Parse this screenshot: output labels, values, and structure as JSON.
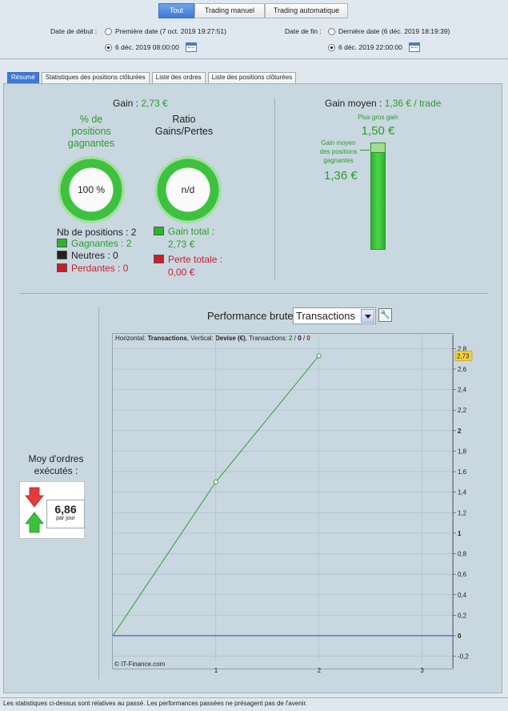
{
  "mode_tabs": [
    "Tout",
    "Trading manuel",
    "Trading automatique"
  ],
  "dates": {
    "start_label": "Date de début :",
    "start_option1": "Première date (7 oct. 2019 19:27:51)",
    "start_option2": "6 déc. 2019 08:00:00",
    "end_label": "Date de fin :",
    "end_option1": "Dernière date (6 déc. 2019 18:19:39)",
    "end_option2": "6 déc. 2019 22:00:00"
  },
  "tabs": [
    "Résumé",
    "Statistiques des positions clôturées",
    "Liste des ordres",
    "Liste des positions clôturées"
  ],
  "summary": {
    "gain_label": "Gain :",
    "gain_value": "2,73 €",
    "pct_label_1": "% de",
    "pct_label_2": "positions",
    "pct_label_3": "gagnantes",
    "pct_value": "100 %",
    "ratio_label_1": "Ratio",
    "ratio_label_2": "Gains/Pertes",
    "ratio_value": "n/d",
    "nb_positions": "Nb de positions : 2",
    "gagnantes": "Gagnantes : 2",
    "neutres": "Neutres : 0",
    "perdantes": "Perdantes : 0",
    "gain_total_label": "Gain total :",
    "gain_total_value": "2,73 €",
    "perte_totale_label": "Perte totale :",
    "perte_totale_value": "0,00 €",
    "gain_moyen_label": "Gain moyen :",
    "gain_moyen_value": "1,36 € / trade",
    "plus_gros_label": "Plus gros gain",
    "plus_gros_value": "1,50 €",
    "gm_label_1": "Gain moyen",
    "gm_label_2": "des positions",
    "gm_label_3": "gagnantes",
    "gm_value": "1,36 €"
  },
  "bar_fill_fraction": 0.907,
  "performance": {
    "title": "Performance brute",
    "select_value": "Transactions",
    "moy_label_1": "Moy d'ordres",
    "moy_label_2": "exécutés :",
    "moy_value": "6,86",
    "moy_unit": "par jour"
  },
  "chart_data": {
    "type": "line",
    "header_prefix": "Horizontal:",
    "header_h": "Transactions",
    "header_mid": ", Vertical:",
    "header_v": "Devise (€)",
    "header_tr": ", Transactions:",
    "header_n1": "2",
    "header_sep": "/",
    "header_n2": "0",
    "header_n3": "0",
    "x": [
      0,
      1,
      2
    ],
    "values": [
      0,
      1.5,
      2.73
    ],
    "last_label": "2,73",
    "xlim": [
      0,
      3.3
    ],
    "ylim": [
      -0.25,
      2.85
    ],
    "x_ticks": [
      "1",
      "2",
      "3"
    ],
    "y_ticks": [
      "-0,2",
      "0",
      "0,2",
      "0,4",
      "0,6",
      "0,8",
      "1",
      "1,2",
      "1,4",
      "1,6",
      "1,8",
      "2",
      "2,2",
      "2,4",
      "2,6",
      "2,8"
    ],
    "copyright": "© IT-Finance.com",
    "colors": {
      "line": "#2f9e3a",
      "zero": "#2222cc",
      "grid": "#a9bac6"
    }
  },
  "footer": "Les statistiques ci-dessus sont relatives au passé. Les performances passées ne présagent pas de l'avenir."
}
